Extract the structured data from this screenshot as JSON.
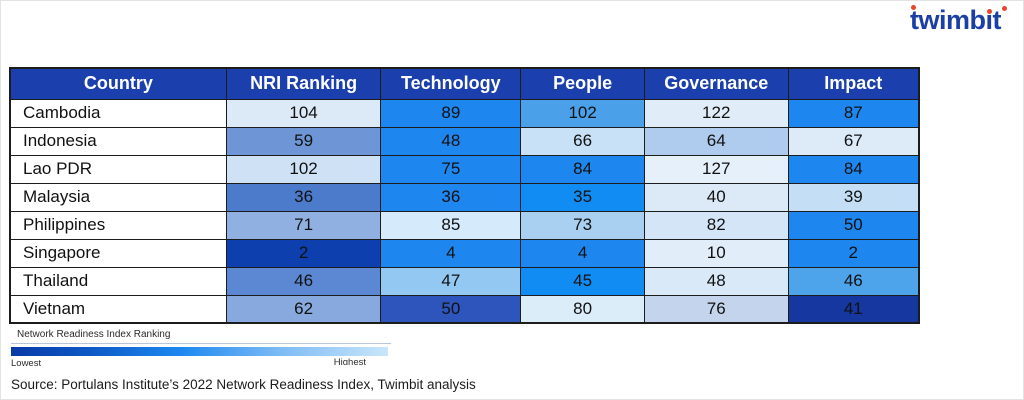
{
  "logo": {
    "text": "twimbit",
    "color": "#1B3FA5",
    "dot_color": "#E8442E"
  },
  "table": {
    "header_bg": "#1C3FAE",
    "header_text_color": "#FFFFFF",
    "headers": [
      "Country",
      "NRI Ranking",
      "Technology",
      "People",
      "Governance",
      "Impact"
    ],
    "rows": [
      {
        "country": "Cambodia",
        "values": [
          104,
          89,
          102,
          122,
          87
        ],
        "colors": [
          "#DCE9F7",
          "#1E87EF",
          "#4AA1E9",
          "#E0EDF9",
          "#1E87EF"
        ]
      },
      {
        "country": "Indonesia",
        "values": [
          59,
          48,
          66,
          64,
          67
        ],
        "colors": [
          "#6E96D6",
          "#1E87EF",
          "#C8E1F6",
          "#AFCBEE",
          "#DDEBF9"
        ]
      },
      {
        "country": "Lao PDR",
        "values": [
          102,
          75,
          84,
          127,
          84
        ],
        "colors": [
          "#CFE2F5",
          "#1E87EF",
          "#1E87EF",
          "#E5F0FB",
          "#1E87EF"
        ]
      },
      {
        "country": "Malaysia",
        "values": [
          36,
          36,
          35,
          40,
          39
        ],
        "colors": [
          "#4C7BCC",
          "#1E87EF",
          "#118CF3",
          "#DCEAF8",
          "#C4DFF5"
        ]
      },
      {
        "country": "Philippines",
        "values": [
          71,
          85,
          73,
          82,
          50
        ],
        "colors": [
          "#8FB0E0",
          "#D5EBFB",
          "#AAD0F1",
          "#D4E5F7",
          "#1E87EF"
        ]
      },
      {
        "country": "Singapore",
        "values": [
          2,
          4,
          4,
          10,
          2
        ],
        "colors": [
          "#0D3FAE",
          "#1E87EF",
          "#1E87EF",
          "#E1EDF9",
          "#1E87EF"
        ]
      },
      {
        "country": "Thailand",
        "values": [
          46,
          47,
          45,
          48,
          46
        ],
        "colors": [
          "#5C88D3",
          "#92C8F2",
          "#118CF3",
          "#DAE9F8",
          "#4DA4EA"
        ]
      },
      {
        "country": "Vietnam",
        "values": [
          62,
          50,
          80,
          76,
          41
        ],
        "colors": [
          "#87A9DD",
          "#2E55BB",
          "#DCEDFA",
          "#C3D4EC",
          "#16379F"
        ]
      }
    ]
  },
  "legend": {
    "title": "Network Readiness Index Ranking",
    "low_label": "Lowest",
    "high_label": "Highest",
    "gradient": [
      "#0A3AA8",
      "#0C57C4",
      "#1E88F0",
      "#7FBCF5",
      "#C9E6FA"
    ]
  },
  "source": "Source: Portulans Institute’s 2022 Network Readiness Index, Twimbit analysis",
  "chart_data": {
    "type": "heatmap",
    "title": "Network Readiness Index Ranking",
    "rows": [
      "Cambodia",
      "Indonesia",
      "Lao PDR",
      "Malaysia",
      "Philippines",
      "Singapore",
      "Thailand",
      "Vietnam"
    ],
    "columns": [
      "NRI Ranking",
      "Technology",
      "People",
      "Governance",
      "Impact"
    ],
    "values": [
      [
        104,
        89,
        102,
        122,
        87
      ],
      [
        59,
        48,
        66,
        64,
        67
      ],
      [
        102,
        75,
        84,
        127,
        84
      ],
      [
        36,
        36,
        35,
        40,
        39
      ],
      [
        71,
        85,
        73,
        82,
        50
      ],
      [
        2,
        4,
        4,
        10,
        2
      ],
      [
        46,
        47,
        45,
        48,
        46
      ],
      [
        62,
        50,
        80,
        76,
        41
      ]
    ],
    "legend": {
      "low": "Lowest",
      "high": "Highest",
      "scale_note": "darker blue = better (lower) ranking"
    }
  }
}
